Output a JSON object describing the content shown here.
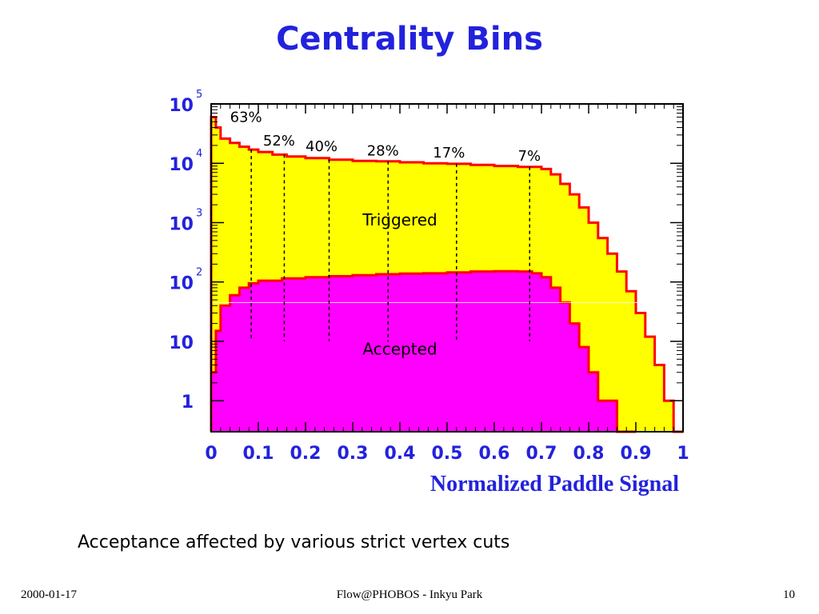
{
  "slide": {
    "title": "Centrality Bins",
    "caption": "Acceptance affected by various strict vertex cuts",
    "footer": {
      "date": "2000-01-17",
      "center": "Flow@PHOBOS - Inkyu Park",
      "page": "10"
    }
  },
  "colors": {
    "title": "#2222dd",
    "triggered_fill": "#ffff00",
    "accepted_fill": "#ff00ff",
    "line": "#ff0000",
    "axis_labels": "#2222dd"
  },
  "chart_data": {
    "type": "area",
    "xlabel": "Normalized Paddle Signal",
    "ylabel": "",
    "xlim": [
      0,
      1
    ],
    "ylim": [
      0.3,
      100000
    ],
    "log_y": true,
    "x_ticks": [
      "0",
      "0.1",
      "0.2",
      "0.3",
      "0.4",
      "0.5",
      "0.6",
      "0.7",
      "0.8",
      "0.9",
      "1"
    ],
    "x_tick_values": [
      0,
      0.1,
      0.2,
      0.3,
      0.4,
      0.5,
      0.6,
      0.7,
      0.8,
      0.9,
      1.0
    ],
    "y_ticks": [
      {
        "value": 1,
        "base": "1",
        "exp": ""
      },
      {
        "value": 10,
        "base": "10",
        "exp": ""
      },
      {
        "value": 100,
        "base": "10",
        "exp": "2"
      },
      {
        "value": 1000,
        "base": "10",
        "exp": "3"
      },
      {
        "value": 10000,
        "base": "10",
        "exp": "4"
      },
      {
        "value": 100000,
        "base": "10",
        "exp": "5"
      }
    ],
    "series": [
      {
        "name": "Triggered",
        "x": [
          0.0,
          0.01,
          0.02,
          0.04,
          0.06,
          0.08,
          0.1,
          0.13,
          0.16,
          0.2,
          0.25,
          0.3,
          0.35,
          0.4,
          0.45,
          0.5,
          0.55,
          0.6,
          0.65,
          0.7,
          0.72,
          0.74,
          0.76,
          0.78,
          0.8,
          0.82,
          0.84,
          0.86,
          0.88,
          0.9,
          0.92,
          0.94,
          0.96,
          0.98
        ],
        "values": [
          60000,
          40000,
          26000,
          22000,
          19000,
          17000,
          15500,
          14000,
          13000,
          12200,
          11500,
          11000,
          10800,
          10400,
          10000,
          9800,
          9400,
          9000,
          8700,
          8000,
          6500,
          4500,
          3000,
          1800,
          1000,
          550,
          300,
          150,
          70,
          30,
          12,
          4,
          1,
          0.3
        ]
      },
      {
        "name": "Accepted",
        "x": [
          0.0,
          0.01,
          0.02,
          0.04,
          0.06,
          0.08,
          0.1,
          0.15,
          0.2,
          0.25,
          0.3,
          0.35,
          0.4,
          0.45,
          0.5,
          0.55,
          0.6,
          0.65,
          0.68,
          0.7,
          0.72,
          0.74,
          0.76,
          0.78,
          0.8,
          0.82,
          0.84,
          0.86,
          0.88
        ],
        "values": [
          3,
          15,
          40,
          60,
          80,
          95,
          105,
          115,
          120,
          125,
          130,
          135,
          138,
          140,
          145,
          150,
          152,
          150,
          140,
          120,
          80,
          45,
          20,
          8,
          3,
          1,
          1,
          0.3,
          0.3
        ]
      }
    ],
    "annotations": [
      {
        "text": "Triggered",
        "x": 0.4,
        "y": 900
      },
      {
        "text": "Accepted",
        "x": 0.4,
        "y": 6
      }
    ],
    "centrality_cuts": [
      {
        "label": "63%",
        "x": 0.085,
        "label_x": 0.04,
        "label_y": 50000
      },
      {
        "label": "52%",
        "x": 0.155,
        "label_x": 0.11,
        "label_y": 20000
      },
      {
        "label": "40%",
        "x": 0.25,
        "label_x": 0.2,
        "label_y": 16000
      },
      {
        "label": "28%",
        "x": 0.375,
        "label_x": 0.33,
        "label_y": 13500
      },
      {
        "label": "17%",
        "x": 0.52,
        "label_x": 0.47,
        "label_y": 12500
      },
      {
        "label": "7%",
        "x": 0.675,
        "label_x": 0.65,
        "label_y": 11000
      }
    ],
    "cut_line_bottom": 10
  }
}
